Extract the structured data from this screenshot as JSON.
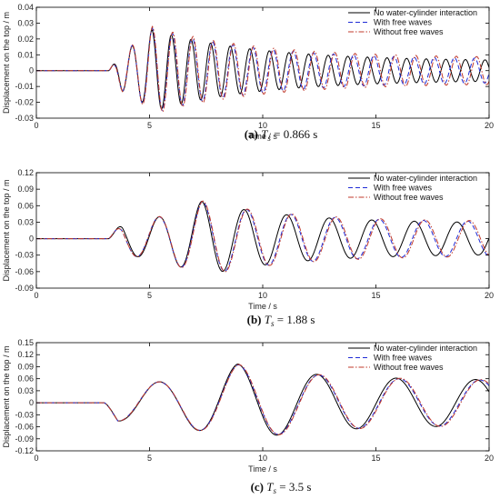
{
  "colors": {
    "no_interaction": "#000000",
    "with_free_waves": "#1f2bd6",
    "without_free_waves": "#c0392b"
  },
  "legend_labels": [
    "No water-cylinder interaction",
    "With free waves",
    "Without free waves"
  ],
  "chart_data": [
    {
      "type": "line",
      "panel": "a",
      "caption": {
        "label": "(a)",
        "symbol": "T",
        "subscript": "s",
        "value": " = 0.866 s"
      },
      "xlabel": "Time / s",
      "ylabel": "Displacement on the top / m",
      "xlim": [
        0,
        20
      ],
      "ylim": [
        -0.03,
        0.04
      ],
      "xticks": [
        "0",
        "5",
        "10",
        "15",
        "20"
      ],
      "yticks": [
        "-0.03",
        "-0.02",
        "-0.01",
        "0",
        "0.01",
        "0.02",
        "0.03",
        "0.04"
      ],
      "legend_position": "top-right",
      "onset": 3.2,
      "series": [
        {
          "name": "No water-cylinder interaction",
          "period": 0.866,
          "pre_amp": 0.012,
          "peak_time": 5.1,
          "peak_amp": 0.026,
          "end_amp": 0.006,
          "lag": 0.0
        },
        {
          "name": "With free waves",
          "period": 0.89,
          "pre_amp": 0.012,
          "peak_time": 5.1,
          "peak_amp": 0.027,
          "end_amp": 0.007,
          "lag": 0.02
        },
        {
          "name": "Without free waves",
          "period": 0.895,
          "pre_amp": 0.012,
          "peak_time": 5.1,
          "peak_amp": 0.028,
          "end_amp": 0.008,
          "lag": 0.03
        }
      ]
    },
    {
      "type": "line",
      "panel": "b",
      "caption": {
        "label": "(b)",
        "symbol": "T",
        "subscript": "s",
        "value": " = 1.88 s"
      },
      "xlabel": "Time / s",
      "ylabel": "Displacement on the top / m",
      "xlim": [
        0,
        20
      ],
      "ylim": [
        -0.09,
        0.12
      ],
      "xticks": [
        "0",
        "5",
        "10",
        "15",
        "20"
      ],
      "yticks": [
        "-0.09",
        "-0.06",
        "-0.03",
        "0",
        "0.03",
        "0.06",
        "0.09",
        "0.12"
      ],
      "legend_position": "top-right",
      "onset": 3.2,
      "series": [
        {
          "name": "No water-cylinder interaction",
          "period": 1.88,
          "pre_amp": 0.03,
          "peak_time": 7.3,
          "peak_amp": 0.068,
          "end_amp": 0.028,
          "lag": 0.0
        },
        {
          "name": "With free waves",
          "period": 1.95,
          "pre_amp": 0.03,
          "peak_time": 7.3,
          "peak_amp": 0.068,
          "end_amp": 0.03,
          "lag": 0.05
        },
        {
          "name": "Without free waves",
          "period": 1.96,
          "pre_amp": 0.03,
          "peak_time": 7.3,
          "peak_amp": 0.069,
          "end_amp": 0.031,
          "lag": 0.07
        }
      ]
    },
    {
      "type": "line",
      "panel": "c",
      "caption": {
        "label": "(c)",
        "symbol": "T",
        "subscript": "s",
        "value": " = 3.5 s"
      },
      "xlabel": "Time / s",
      "ylabel": "Displacement on the top / m",
      "xlim": [
        0,
        20
      ],
      "ylim": [
        -0.12,
        0.15
      ],
      "xticks": [
        "0",
        "5",
        "10",
        "15",
        "20"
      ],
      "yticks": [
        "-0.12",
        "-0.09",
        "-0.06",
        "-0.03",
        "0",
        "0.03",
        "0.06",
        "0.09",
        "0.12",
        "0.15"
      ],
      "legend_position": "top-right",
      "onset": 3.0,
      "series": [
        {
          "name": "No water-cylinder interaction",
          "period": 3.5,
          "pre_amp": 0.045,
          "peak_time": 8.9,
          "peak_amp": 0.097,
          "end_amp": 0.056,
          "lag": 0.0
        },
        {
          "name": "With free waves",
          "period": 3.55,
          "pre_amp": 0.045,
          "peak_time": 8.9,
          "peak_amp": 0.095,
          "end_amp": 0.055,
          "lag": 0.04
        },
        {
          "name": "Without free waves",
          "period": 3.56,
          "pre_amp": 0.045,
          "peak_time": 8.9,
          "peak_amp": 0.096,
          "end_amp": 0.056,
          "lag": 0.06
        }
      ]
    }
  ]
}
